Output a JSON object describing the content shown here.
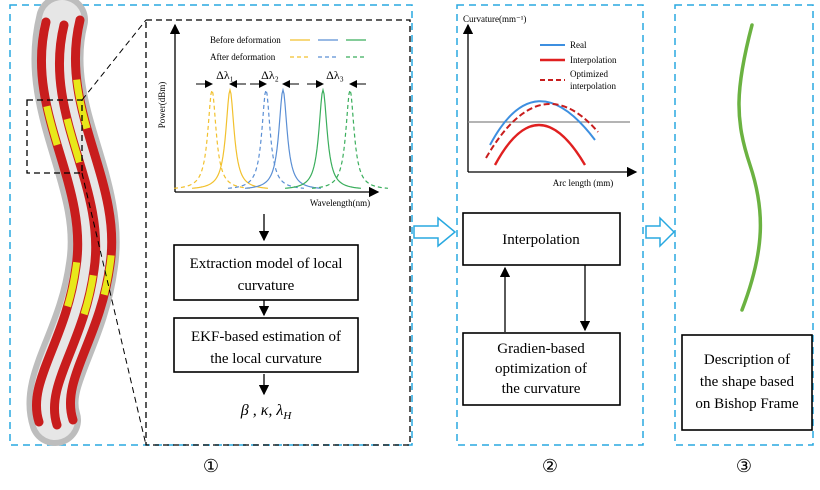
{
  "panel1": {
    "spectrum": {
      "y_axis_label": "Power(dBm)",
      "x_axis_label": "Wavelength(nm)",
      "legend": [
        "Before deformation",
        "After deformation"
      ],
      "shift_labels": [
        "Δλ₁",
        "Δλ₂",
        "Δλ₃"
      ]
    },
    "steps": [
      [
        "Extraction model of local",
        "curvature"
      ],
      [
        "EKF-based estimation of",
        "the local curvature"
      ]
    ],
    "output": {
      "main": "β , κ, λ",
      "sub": "H"
    },
    "number": "①"
  },
  "panel2": {
    "chart": {
      "y_axis_label": "Curvature(mm⁻¹)",
      "x_axis_label": "Arc length (mm)",
      "legend": [
        "Real",
        "Interpolation",
        [
          "Optimized",
          "interpolation"
        ]
      ]
    },
    "steps": [
      [
        "Interpolation"
      ],
      [
        "Gradien-based",
        "optimization of",
        "the curvature"
      ]
    ],
    "number": "②"
  },
  "panel3": {
    "steps": [
      [
        "Description of",
        "the shape  based",
        "on Bishop Frame"
      ]
    ],
    "number": "③"
  }
}
